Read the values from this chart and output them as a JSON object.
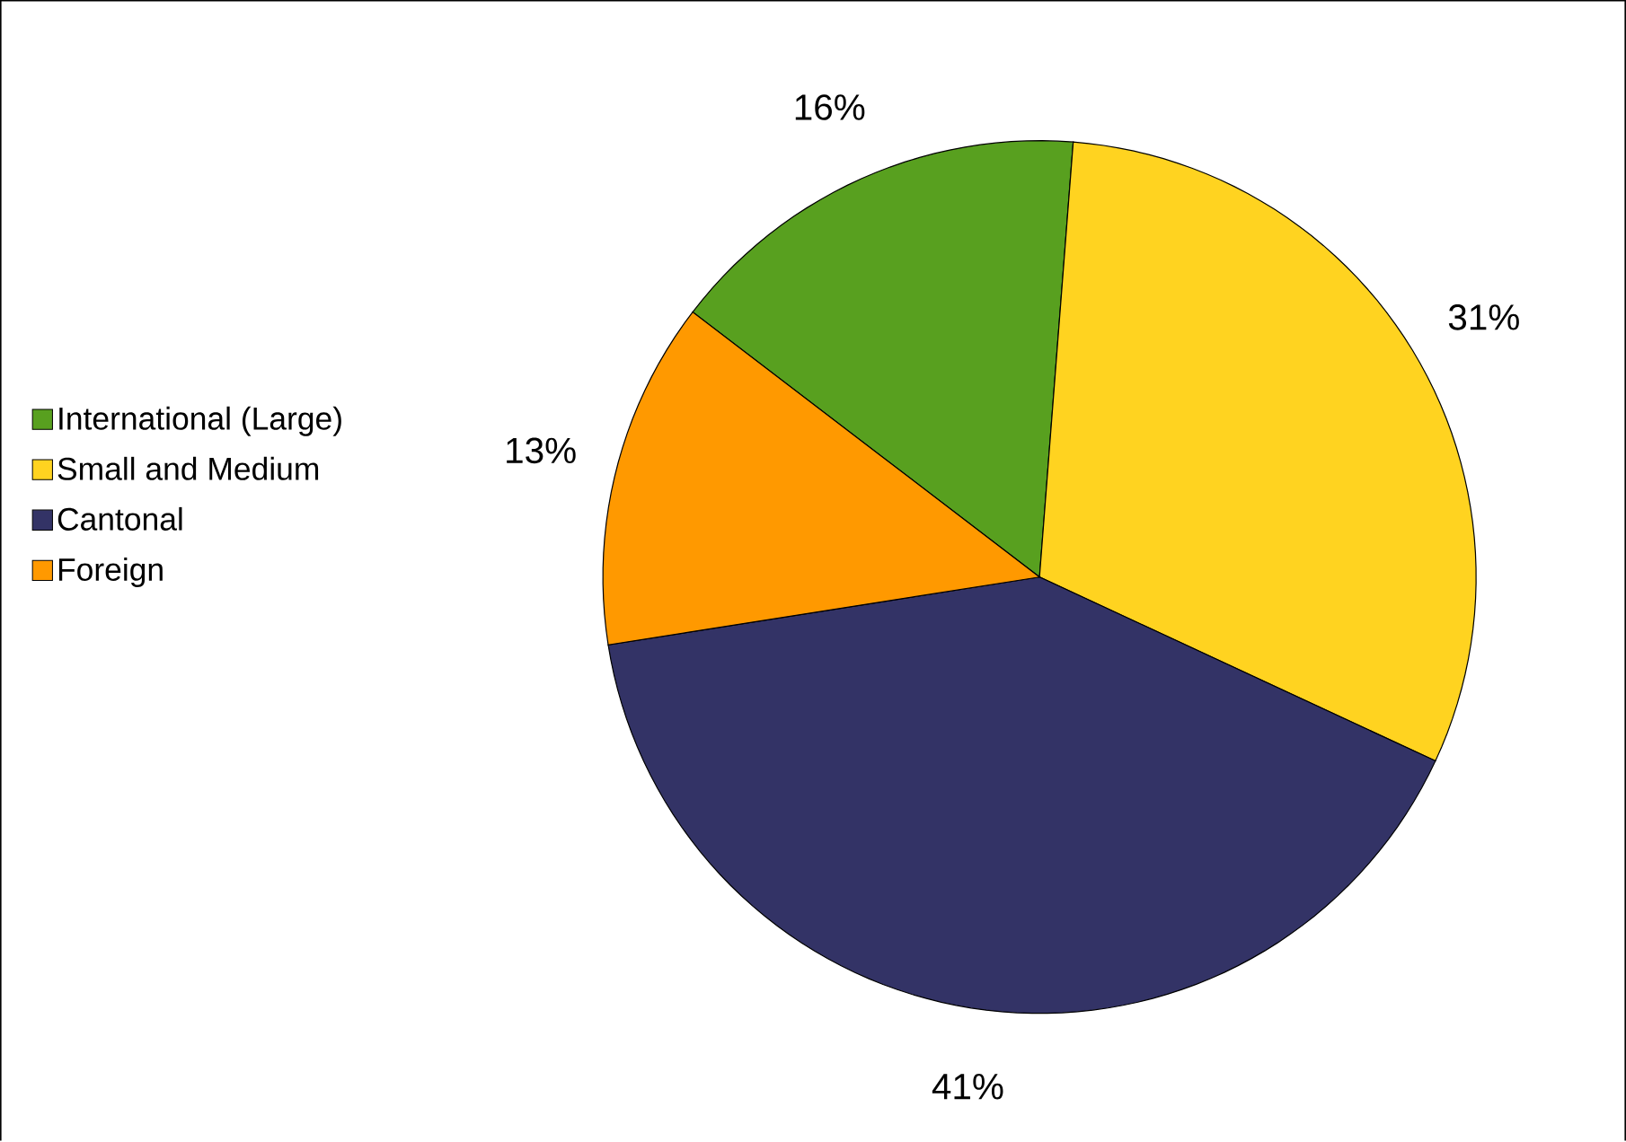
{
  "chart_data": {
    "type": "pie",
    "categories": [
      "International (Large)",
      "Small and Medium",
      "Cantonal",
      "Foreign"
    ],
    "values": [
      16,
      31,
      41,
      13
    ],
    "value_labels": [
      "16%",
      "31%",
      "41%",
      "13%"
    ],
    "colors": [
      "#58a01f",
      "#ffd320",
      "#333366",
      "#ff9900"
    ],
    "legend": "left"
  }
}
